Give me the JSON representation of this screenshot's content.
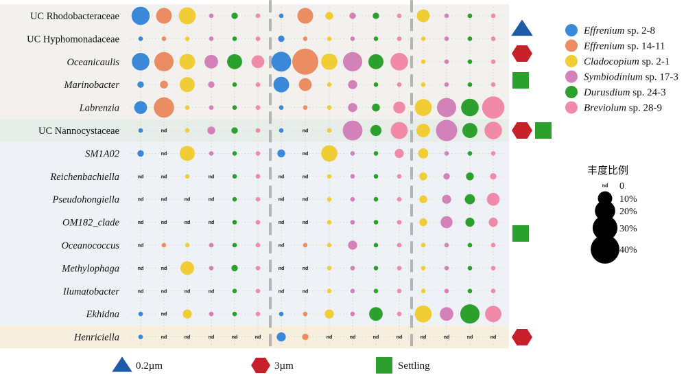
{
  "chart_data": {
    "type": "bubble-matrix",
    "rows": [
      {
        "label": "UC Rhodobacteraceae",
        "italic": false
      },
      {
        "label": "UC Hyphomonadaceae",
        "italic": false
      },
      {
        "label": "Oceanicaulis",
        "italic": true
      },
      {
        "label": "Marinobacter",
        "italic": true
      },
      {
        "label": "Labrenzia",
        "italic": true
      },
      {
        "label": "UC Nannocystaceae",
        "italic": false
      },
      {
        "label": "SM1A02",
        "italic": true
      },
      {
        "label": "Reichenbachiella",
        "italic": true
      },
      {
        "label": "Pseudohongiella",
        "italic": true
      },
      {
        "label": "OM182_clade",
        "italic": true
      },
      {
        "label": "Oceanococcus",
        "italic": true
      },
      {
        "label": "Methylophaga",
        "italic": true
      },
      {
        "label": "Ilumatobacter",
        "italic": true
      },
      {
        "label": "Ekhidna",
        "italic": true
      },
      {
        "label": "Henriciella",
        "italic": true
      }
    ],
    "groups": [
      {
        "name": "0.2µm",
        "shape": "triangle"
      },
      {
        "name": "3µm",
        "shape": "hexagon"
      },
      {
        "name": "Settling",
        "shape": "square"
      }
    ],
    "series": [
      {
        "name_italic": "Effrenium",
        "name_rest": " sp. 2-8",
        "color": "#3a88d8"
      },
      {
        "name_italic": "Effrenium",
        "name_rest": " sp. 14-11",
        "color": "#ec8c63"
      },
      {
        "name_italic": "Cladocopium",
        "name_rest": " sp. 2-1",
        "color": "#f1cd35"
      },
      {
        "name_italic": "Symbiodinium",
        "name_rest": " sp. 17-3",
        "color": "#d282b8"
      },
      {
        "name_italic": "Durusdium",
        "name_rest": " sp. 24-3",
        "color": "#2ca02c"
      },
      {
        "name_italic": "Breviolum",
        "name_rest": " sp. 28-9",
        "color": "#f08aa8"
      }
    ],
    "values": [
      [
        [
          16,
          12,
          14,
          1,
          2,
          1
        ],
        [
          1,
          1,
          1,
          1,
          1,
          1
        ],
        [
          15,
          18,
          12,
          9,
          11,
          8
        ],
        [
          2,
          3,
          11,
          2,
          1,
          1
        ],
        [
          8,
          20,
          1,
          1,
          1,
          1
        ],
        [
          1,
          null,
          1,
          3,
          2,
          1
        ],
        [
          2,
          null,
          11,
          1,
          1,
          1
        ],
        [
          null,
          null,
          1,
          null,
          1,
          1
        ],
        [
          null,
          null,
          null,
          null,
          1,
          1
        ],
        [
          null,
          null,
          null,
          null,
          1,
          1
        ],
        [
          null,
          1,
          1,
          1,
          1,
          1
        ],
        [
          null,
          null,
          9,
          1,
          2,
          1
        ],
        [
          null,
          null,
          null,
          null,
          1,
          1
        ],
        [
          1,
          null,
          4,
          1,
          1,
          1
        ],
        [
          1,
          null,
          null,
          null,
          null,
          null
        ]
      ],
      [
        [
          1,
          12,
          3,
          2,
          2,
          1
        ],
        [
          2,
          1,
          1,
          1,
          1,
          1
        ],
        [
          19,
          33,
          13,
          18,
          11,
          15
        ],
        [
          12,
          8,
          1,
          4,
          1,
          1
        ],
        [
          1,
          1,
          1,
          4,
          3,
          7
        ],
        [
          1,
          null,
          1,
          19,
          6,
          14
        ],
        [
          3,
          null,
          13,
          1,
          1,
          4
        ],
        [
          null,
          null,
          1,
          1,
          1,
          1
        ],
        [
          null,
          null,
          1,
          1,
          1,
          1
        ],
        [
          null,
          null,
          1,
          1,
          1,
          1
        ],
        [
          null,
          1,
          1,
          4,
          1,
          1
        ],
        [
          null,
          null,
          1,
          1,
          1,
          1
        ],
        [
          null,
          null,
          1,
          1,
          1,
          1
        ],
        [
          1,
          1,
          4,
          1,
          9,
          1
        ],
        [
          4,
          2,
          null,
          null,
          null,
          null
        ]
      ],
      [
        [
          8,
          1,
          1,
          1
        ],
        [
          1,
          1,
          1,
          1
        ],
        [
          1,
          1,
          1,
          1
        ],
        [
          1,
          1,
          1,
          1
        ],
        [
          14,
          18,
          15,
          24
        ],
        [
          9,
          22,
          11,
          15
        ],
        [
          5,
          1,
          1,
          1
        ],
        [
          3,
          2,
          3,
          2
        ],
        [
          3,
          4,
          5,
          8
        ],
        [
          3,
          7,
          4,
          4
        ],
        [
          1,
          1,
          1,
          1
        ],
        [
          1,
          1,
          1,
          1
        ],
        [
          1,
          1,
          1,
          1
        ],
        [
          14,
          9,
          18,
          13
        ],
        [
          null,
          null,
          null,
          null
        ]
      ]
    ],
    "column_series": [
      [
        0,
        1,
        2,
        3,
        4,
        5
      ],
      [
        0,
        1,
        2,
        3,
        4,
        5
      ],
      [
        2,
        3,
        4,
        5
      ]
    ],
    "row_markers": [
      {
        "row": 1,
        "shapes": [
          "triangle"
        ]
      },
      {
        "row": 2,
        "shapes": [
          "hexagon"
        ]
      },
      {
        "row": 3,
        "shapes": [
          "square"
        ]
      },
      {
        "row": 5,
        "shapes": [
          "hexagon",
          "square"
        ]
      },
      {
        "row": 10,
        "shapes": [
          "square"
        ]
      },
      {
        "row": 14,
        "shapes": [
          "hexagon"
        ]
      }
    ],
    "row_bands": [
      {
        "from": 0,
        "to": 4,
        "color": "#f3f1ed"
      },
      {
        "from": 5,
        "to": 5,
        "color": "#e7eee9"
      },
      {
        "from": 6,
        "to": 13,
        "color": "#eef1f6"
      },
      {
        "from": 14,
        "to": 14,
        "color": "#f6efdd"
      }
    ],
    "nd_label": "nd",
    "size_legend": {
      "title": "丰度比例",
      "items": [
        {
          "label": "0",
          "value": null
        },
        {
          "label": "10%",
          "value": 10
        },
        {
          "label": "20%",
          "value": 20
        },
        {
          "label": "30%",
          "value": 30
        },
        {
          "label": "40%",
          "value": 40
        }
      ]
    },
    "group_legend": [
      {
        "shape": "triangle",
        "label": "0.2µm"
      },
      {
        "shape": "hexagon",
        "label": "3µm"
      },
      {
        "shape": "square",
        "label": "Settling"
      }
    ],
    "shape_colors": {
      "triangle": "#1f5aa8",
      "hexagon": "#c8202a",
      "square": "#2ca02c"
    }
  }
}
